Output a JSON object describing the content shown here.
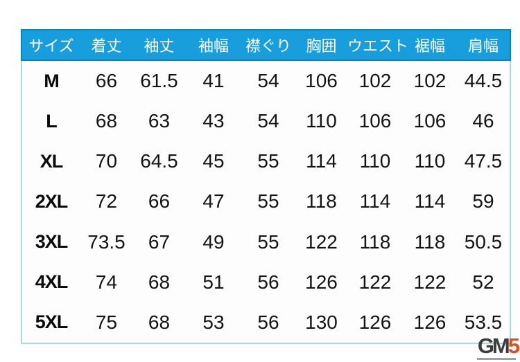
{
  "chart_data": {
    "type": "table",
    "title": "",
    "columns": [
      "サイズ",
      "着丈",
      "袖丈",
      "袖幅",
      "襟ぐり",
      "胸囲",
      "ウエスト",
      "裾幅",
      "肩幅"
    ],
    "rows": [
      [
        "M",
        "66",
        "61.5",
        "41",
        "54",
        "106",
        "102",
        "102",
        "44.5"
      ],
      [
        "L",
        "68",
        "63",
        "43",
        "54",
        "110",
        "106",
        "106",
        "46"
      ],
      [
        "XL",
        "70",
        "64.5",
        "45",
        "55",
        "114",
        "110",
        "110",
        "47.5"
      ],
      [
        "2XL",
        "72",
        "66",
        "47",
        "55",
        "118",
        "114",
        "114",
        "59"
      ],
      [
        "3XL",
        "73.5",
        "67",
        "49",
        "55",
        "122",
        "118",
        "118",
        "50.5"
      ],
      [
        "4XL",
        "74",
        "68",
        "51",
        "56",
        "126",
        "122",
        "122",
        "52"
      ],
      [
        "5XL",
        "75",
        "68",
        "53",
        "56",
        "130",
        "126",
        "126",
        "53.5"
      ]
    ],
    "layout": {
      "header_position": "top",
      "gridlines": false
    }
  },
  "watermark": {
    "gm": "GM",
    "five": "5"
  },
  "colors": {
    "header_bg": "#189edc",
    "header_border": "#0c82c4",
    "header_text": "#ffffff",
    "body_border": "#a9dae3",
    "cell_text": "#141414",
    "logo_gm": "#3d3d3d",
    "logo_five": "#e8491b"
  }
}
